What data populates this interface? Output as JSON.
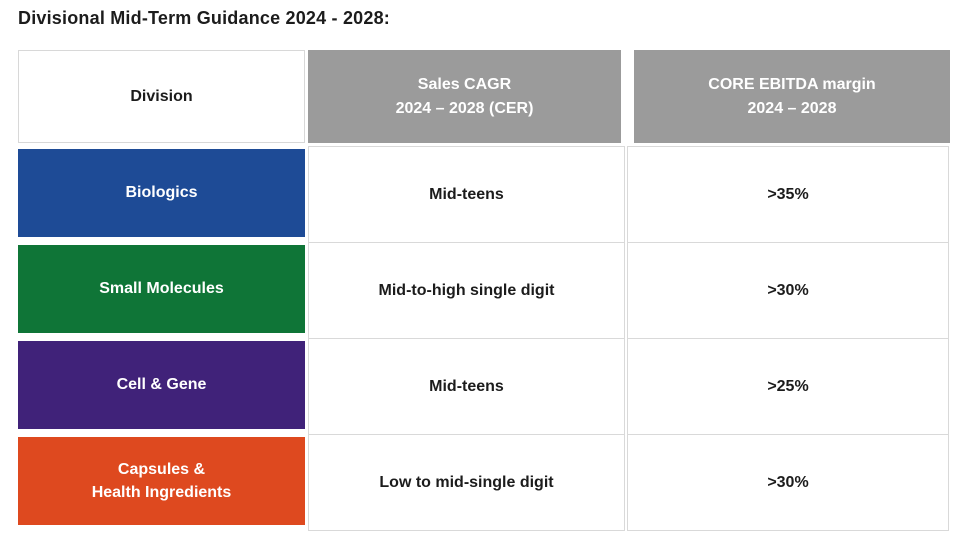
{
  "page": {
    "title": "Divisional Mid-Term Guidance 2024 - 2028:"
  },
  "colors": {
    "header_bg": "#9b9b9b",
    "header_text": "#ffffff",
    "border": "#d9d9d9",
    "body_text": "#1c1c1c",
    "biologics_blue": "#1e4b96",
    "small_molecules_green": "#0f7537",
    "cell_gene_purple": "#402279",
    "capsules_orange": "#de491f"
  },
  "table": {
    "columns": [
      {
        "label": "Division"
      },
      {
        "label": "Sales CAGR\n2024 – 2028 (CER)"
      },
      {
        "label": "CORE EBITDA margin\n2024 – 2028"
      }
    ],
    "rows": [
      {
        "division": "Biologics",
        "division_color": "#1e4b96",
        "sales_cagr": "Mid-teens",
        "core_ebitda_margin": ">35%"
      },
      {
        "division": "Small Molecules",
        "division_color": "#0f7537",
        "sales_cagr": "Mid-to-high single digit",
        "core_ebitda_margin": ">30%"
      },
      {
        "division": "Cell & Gene",
        "division_color": "#402279",
        "sales_cagr": "Mid-teens",
        "core_ebitda_margin": ">25%"
      },
      {
        "division": "Capsules &\nHealth Ingredients",
        "division_color": "#de491f",
        "sales_cagr": "Low to mid-single digit",
        "core_ebitda_margin": ">30%"
      }
    ]
  }
}
